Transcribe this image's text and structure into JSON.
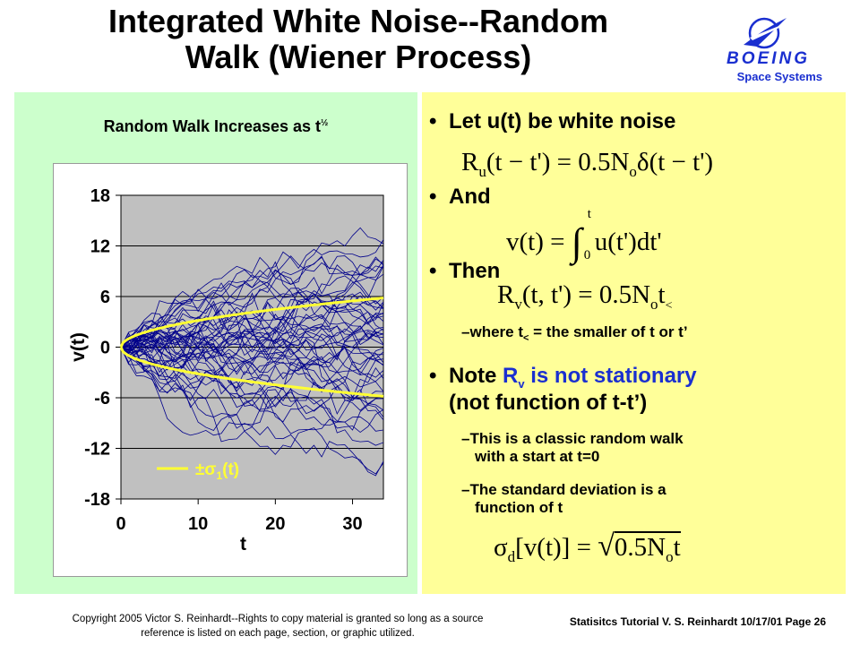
{
  "slide": {
    "title_line1": "Integrated White Noise--Random",
    "title_line2": "Walk (Wiener Process)",
    "logo_text": "BOEING",
    "logo_sub": "Space Systems",
    "bullets": {
      "b1": "Let u(t) be white noise",
      "b2": "And",
      "b3": "Then",
      "b3_sub_pre": "where t",
      "b3_sub_subscript": "<",
      "b3_sub_post": " = the smaller of t or t’",
      "b4_pre": "Note ",
      "b4_R": "R",
      "b4_R_sub": "v",
      "b4_mid": " is not stationary",
      "b4_line2": "(not function of t-t’)",
      "s1_l1": "This is a classic random walk",
      "s1_l2": "with a start at t=0",
      "s2_l1": "The standard deviation is a",
      "s2_l2": "function of t"
    },
    "equations": {
      "e1_pre": "R",
      "e1_sub": "u",
      "e1_post": "(t − t') = 0.5N",
      "e1_sub2": "o",
      "e1_end": "δ(t − t')",
      "e2_pre": "v(t) = ",
      "e2_upper": "t",
      "e2_lower": "0",
      "e2_post": "u(t')dt'",
      "e3_pre": "R",
      "e3_sub": "v",
      "e3_post": "(t, t') = 0.5N",
      "e3_sub2": "o",
      "e3_t": "t",
      "e3_sub3": "<",
      "e4_pre": "σ",
      "e4_sub": "d",
      "e4_mid": "[v(t)] = ",
      "e4_rad": "0.5N",
      "e4_sub2": "o",
      "e4_t": "t"
    },
    "footer_left_1": "Copyright 2005 Victor S. Reinhardt--Rights to copy material is granted so long as a source",
    "footer_left_2": "reference is listed on each page, section, or graphic utilized.",
    "footer_right": "Statisitcs Tutorial V. S. Reinhardt 10/17/01 Page 26"
  },
  "colors": {
    "left_bg": "#ccffcc",
    "right_bg": "#ffff99",
    "plot_bg": "#c0c0c0",
    "walk": "#00008b",
    "sigma": "#ffff33",
    "blue_text": "#1a2fd0"
  },
  "chart_data": {
    "type": "line",
    "title": "Random Walk Increases as t",
    "title_sup": "½",
    "xlabel": "t",
    "ylabel": "v(t)",
    "xlim": [
      0,
      34
    ],
    "ylim": [
      -18,
      18
    ],
    "xticks": [
      "0",
      "10",
      "20",
      "30"
    ],
    "xtick_values": [
      0,
      10,
      20,
      30
    ],
    "yticks": [
      "18",
      "12",
      "6",
      "0",
      "-6",
      "-12",
      "-18"
    ],
    "ytick_values": [
      18,
      12,
      6,
      0,
      -6,
      -12,
      -18
    ],
    "grid": "horizontal",
    "legend": {
      "position": "bottom-left",
      "entries": [
        {
          "label_pre": "±σ",
          "label_sub": "1",
          "label_post": "(t)"
        }
      ]
    },
    "series": [
      {
        "kind": "random_walks",
        "count": 50,
        "step_sigma": 1.0,
        "x": [
          0,
          34
        ]
      },
      {
        "kind": "sigma_upper",
        "formula": "+sqrt(t)",
        "x": [
          0,
          34
        ]
      },
      {
        "kind": "sigma_lower",
        "formula": "-sqrt(t)",
        "x": [
          0,
          34
        ]
      }
    ]
  }
}
